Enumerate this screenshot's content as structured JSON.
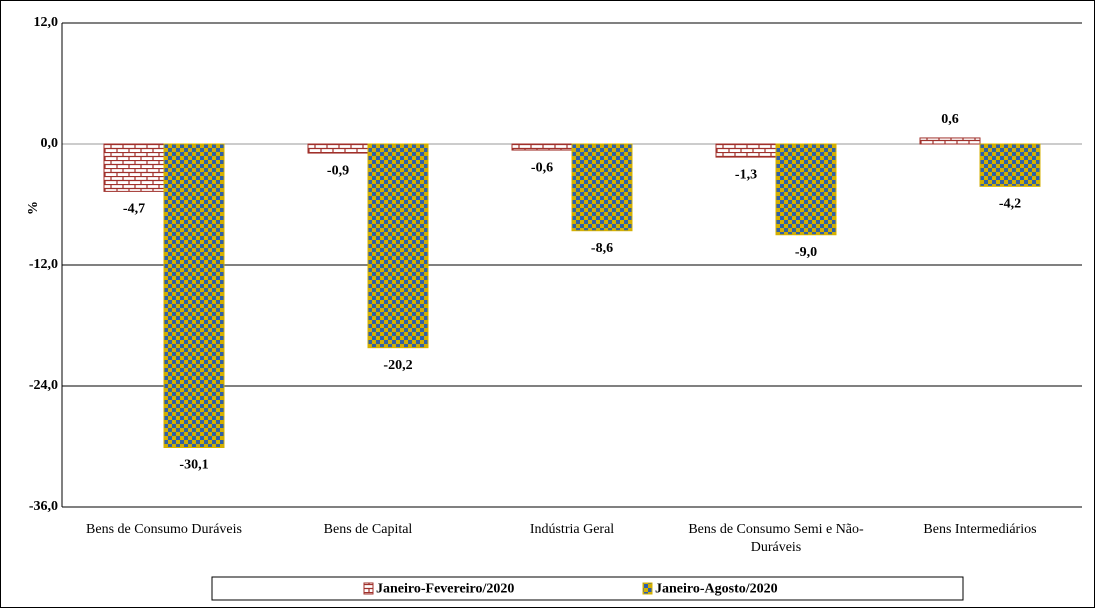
{
  "chart_data": {
    "type": "bar",
    "categories": [
      "Bens de Consumo Duráveis",
      "Bens de Capital",
      "Indústria Geral",
      "Bens de Consumo Semi e Não-Duráveis",
      "Bens Intermediários"
    ],
    "series": [
      {
        "name": "Janeiro-Fevereiro/2020",
        "color": "#a0302b",
        "values": [
          -4.7,
          -0.9,
          -0.6,
          -1.3,
          0.6
        ],
        "value_labels": [
          "-4,7",
          "-0,9",
          "-0,6",
          "-1,3",
          "0,6"
        ]
      },
      {
        "name": "Janeiro-Agosto/2020",
        "color": "#d4b000",
        "values": [
          -30.1,
          -20.2,
          -8.6,
          -9.0,
          -4.2
        ],
        "value_labels": [
          "-30,1",
          "-20,2",
          "-8,6",
          "-9,0",
          "-4,2"
        ]
      }
    ],
    "ylabel": "%",
    "ylim": [
      -36,
      12
    ],
    "yticks": [
      {
        "value": -36,
        "label": "-36,0"
      },
      {
        "value": -24,
        "label": "-24,0"
      },
      {
        "value": -12,
        "label": "-12,0"
      },
      {
        "value": 0,
        "label": "0,0"
      },
      {
        "value": 12,
        "label": "12,0"
      }
    ],
    "grid": true,
    "legend": "bottom"
  }
}
